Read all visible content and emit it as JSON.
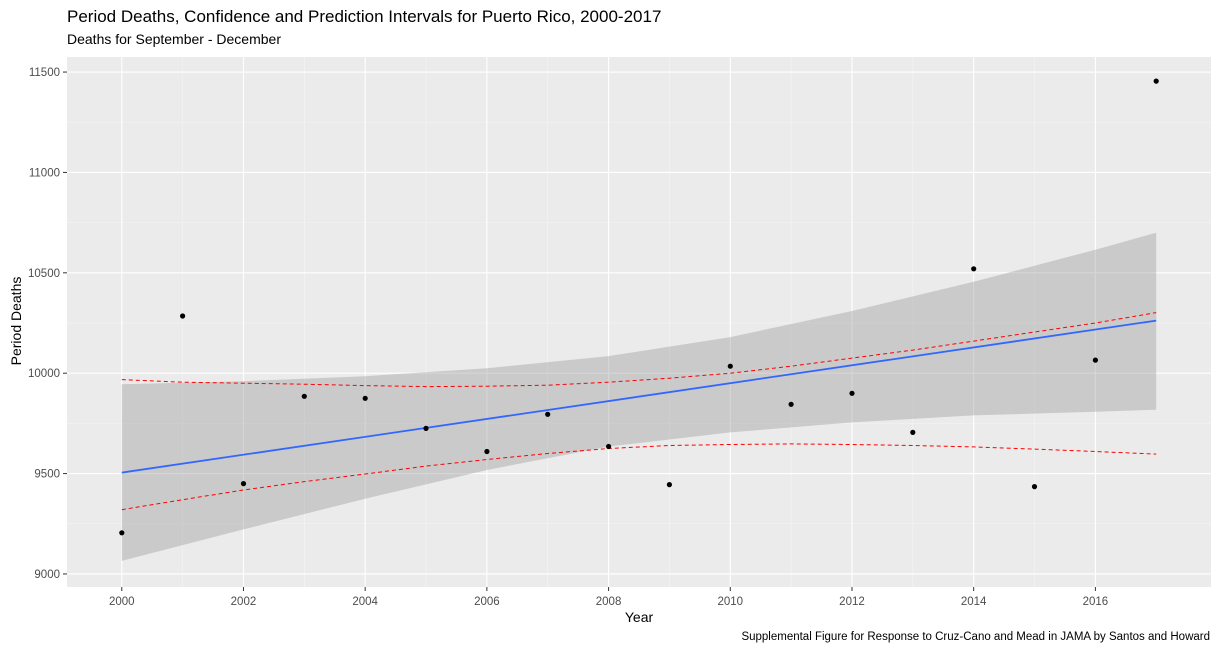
{
  "chart_data": {
    "type": "scatter",
    "title": "Period Deaths, Confidence and Prediction Intervals for Puerto Rico, 2000-2017",
    "subtitle": "Deaths for September - December",
    "xlabel": "Year",
    "ylabel": "Period Deaths",
    "caption": "Supplemental Figure for Response to Cruz-Cano and Mead in JAMA by Santos and Howard",
    "xlim": [
      1999.1,
      2017.9
    ],
    "ylim": [
      8935,
      11575
    ],
    "x_ticks": [
      2000,
      2002,
      2004,
      2006,
      2008,
      2010,
      2012,
      2014,
      2016
    ],
    "y_ticks": [
      9000,
      9500,
      10000,
      10500,
      11000,
      11500
    ],
    "grid": true,
    "series": [
      {
        "name": "Observed period deaths",
        "kind": "points",
        "color": "#000000",
        "x": [
          2000,
          2001,
          2002,
          2003,
          2004,
          2005,
          2006,
          2007,
          2008,
          2009,
          2010,
          2011,
          2012,
          2013,
          2014,
          2015,
          2016,
          2017
        ],
        "values": [
          9205,
          10285,
          9450,
          9885,
          9875,
          9725,
          9610,
          9795,
          9635,
          9445,
          10035,
          9845,
          9900,
          9705,
          10520,
          9435,
          10065,
          11455
        ]
      },
      {
        "name": "Linear fit",
        "kind": "line",
        "color": "#3366FF",
        "x": [
          2000,
          2017
        ],
        "values": [
          9505,
          10262
        ]
      },
      {
        "name": "Confidence interval",
        "kind": "ribbon",
        "color": "#999999",
        "x": [
          2000,
          2002,
          2004,
          2006,
          2008,
          2010,
          2012,
          2014,
          2016,
          2017
        ],
        "lower": [
          9065,
          9222,
          9375,
          9518,
          9635,
          9705,
          9755,
          9790,
          9808,
          9818
        ],
        "upper": [
          9945,
          9960,
          9985,
          10025,
          10085,
          10180,
          10310,
          10455,
          10615,
          10700
        ]
      },
      {
        "name": "Prediction interval (upper)",
        "kind": "dashed",
        "color": "#FF0000",
        "x": [
          2000,
          2001,
          2002,
          2003,
          2004,
          2005,
          2006,
          2007,
          2008,
          2009,
          2010,
          2011,
          2012,
          2013,
          2014,
          2015,
          2016,
          2017
        ],
        "values": [
          9968,
          9955,
          9950,
          9945,
          9938,
          9933,
          9935,
          9940,
          9955,
          9975,
          10000,
          10035,
          10075,
          10115,
          10160,
          10205,
          10250,
          10302
        ]
      },
      {
        "name": "Prediction interval (lower)",
        "kind": "dashed",
        "color": "#FF0000",
        "x": [
          2000,
          2001,
          2002,
          2003,
          2004,
          2005,
          2006,
          2007,
          2008,
          2009,
          2010,
          2011,
          2012,
          2013,
          2014,
          2015,
          2016,
          2017
        ],
        "values": [
          9320,
          9370,
          9418,
          9460,
          9498,
          9537,
          9570,
          9600,
          9625,
          9640,
          9645,
          9648,
          9645,
          9640,
          9633,
          9622,
          9610,
          9597
        ]
      }
    ]
  }
}
